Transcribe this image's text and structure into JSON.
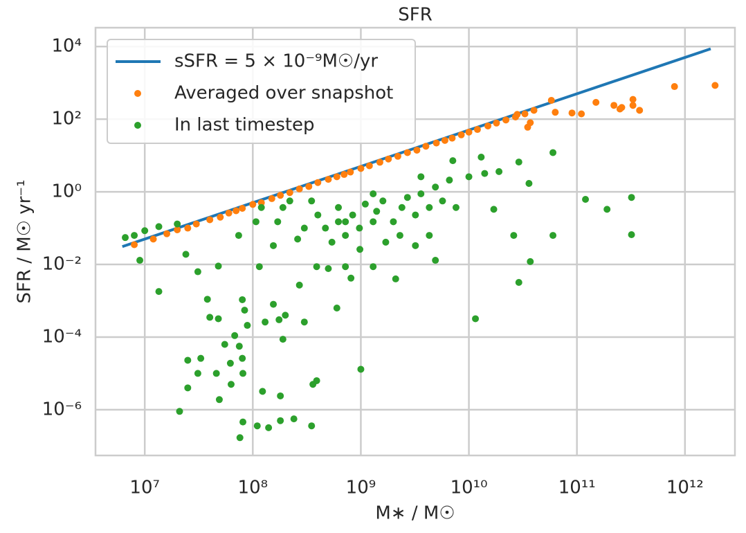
{
  "chart_data": {
    "type": "scatter",
    "title": "SFR",
    "x_label": "M∗ / M☉",
    "y_label": "SFR / M☉ yr⁻¹",
    "xscale": "log",
    "yscale": "log",
    "grid": true,
    "legend": "upper left",
    "xlim": [
      3500000.0,
      2900000000000.0
    ],
    "ylim": [
      5.5e-08,
      33000.0
    ],
    "xticks": [
      {
        "value": 10000000.0,
        "label": "10⁷"
      },
      {
        "value": 100000000.0,
        "label": "10⁸"
      },
      {
        "value": 1000000000.0,
        "label": "10⁹"
      },
      {
        "value": 10000000000.0,
        "label": "10¹⁰"
      },
      {
        "value": 100000000000.0,
        "label": "10¹¹"
      },
      {
        "value": 1000000000000.0,
        "label": "10¹²"
      }
    ],
    "yticks": [
      {
        "value": 1e-06,
        "label": "10⁻⁶"
      },
      {
        "value": 0.0001,
        "label": "10⁻⁴"
      },
      {
        "value": 0.01,
        "label": "10⁻²"
      },
      {
        "value": 1,
        "label": "10⁰"
      },
      {
        "value": 100,
        "label": "10²"
      },
      {
        "value": 10000,
        "label": "10⁴"
      }
    ],
    "series": [
      {
        "name": "sSFR = 5 × 10⁻⁹M☉/yr",
        "kind": "line",
        "color": "#1f77b4",
        "x": [
          6200000.0,
          1730000000000.0
        ],
        "values": [
          0.031,
          8650
        ]
      },
      {
        "name": "Averaged over snapshot",
        "kind": "scatter",
        "color": "#ff7f0e",
        "x": [
          8000000.0,
          12000000.0,
          16000000.0,
          20000000.0,
          25000000.0,
          30000000.0,
          40000000.0,
          50000000.0,
          60000000.0,
          70000000.0,
          80000000.0,
          100000000.0,
          120000000.0,
          150000000.0,
          180000000.0,
          220000000.0,
          270000000.0,
          330000000.0,
          400000000.0,
          500000000.0,
          600000000.0,
          700000000.0,
          800000000.0,
          1000000000.0,
          1200000000.0,
          1500000000.0,
          1800000000.0,
          2200000000.0,
          2700000000.0,
          3300000000.0,
          4000000000.0,
          5000000000.0,
          6000000000.0,
          7000000000.0,
          8500000000.0,
          10000000000.0,
          12000000000.0,
          15000000000.0,
          18000000000.0,
          22000000000.0,
          27000000000.0,
          33000000000.0,
          40000000000.0,
          35000000000.0,
          28000000000.0,
          37000000000.0,
          58000000000.0,
          63000000000.0,
          90000000000.0,
          150000000000.0,
          110000000000.0,
          220000000000.0,
          250000000000.0,
          260000000000.0,
          330000000000.0,
          330000000000.0,
          380000000000.0,
          800000000000.0,
          1900000000000.0
        ],
        "values": [
          0.035,
          0.05,
          0.07,
          0.09,
          0.1,
          0.13,
          0.17,
          0.2,
          0.26,
          0.3,
          0.35,
          0.45,
          0.5,
          0.65,
          0.8,
          0.95,
          1.2,
          1.4,
          1.8,
          2.2,
          2.6,
          3,
          3.5,
          4.4,
          5.2,
          6.5,
          8,
          9.5,
          12,
          14,
          18,
          22,
          26,
          30,
          37,
          44,
          52,
          65,
          78,
          95,
          115,
          140,
          175,
          60,
          135,
          80,
          330,
          155,
          148,
          290,
          140,
          240,
          190,
          210,
          350,
          240,
          175,
          790,
          850
        ]
      },
      {
        "name": "In last timestep",
        "kind": "scatter",
        "color": "#2ca02c",
        "x": [
          6600000.0,
          8000000.0,
          10000000.0,
          13500000.0,
          9000000.0,
          13500000.0,
          20000000.0,
          24000000.0,
          31000000.0,
          21000000.0,
          25000000.0,
          25000000.0,
          33000000.0,
          31000000.0,
          38000000.0,
          40000000.0,
          46000000.0,
          48000000.0,
          48000000.0,
          49000000.0,
          55000000.0,
          63000000.0,
          62000000.0,
          68000000.0,
          76000000.0,
          81000000.0,
          80000000.0,
          84000000.0,
          75000000.0,
          80000000.0,
          81000000.0,
          89000000.0,
          110000000.0,
          115000000.0,
          123000000.0,
          130000000.0,
          140000000.0,
          155000000.0,
          175000000.0,
          180000000.0,
          190000000.0,
          180000000.0,
          200000000.0,
          240000000.0,
          270000000.0,
          300000000.0,
          350000000.0,
          360000000.0,
          390000000.0,
          390000000.0,
          500000000.0,
          600000000.0,
          1000000000.0,
          720000000.0,
          810000000.0,
          1300000000.0,
          2100000000.0,
          4900000000.0,
          11500000000.0,
          29000000000.0,
          37000000000.0,
          60000000000.0,
          26000000000.0,
          17000000000.0,
          60000000000.0,
          120000000000.0,
          190000000000.0,
          320000000000.0,
          320000000000.0,
          13000000000.0,
          7100000000.0,
          36000000000.0,
          29000000000.0,
          19000000000.0,
          120000000.0,
          170000000.0,
          220000000.0,
          300000000.0,
          400000000.0,
          540000000.0,
          620000000.0,
          720000000.0,
          840000000.0,
          970000000.0,
          1100000000.0,
          1400000000.0,
          1600000000.0,
          2000000000.0,
          2400000000.0,
          2700000000.0,
          3200000000.0,
          3600000000.0,
          4300000000.0,
          4900000000.0,
          5700000000.0,
          6600000000.0,
          1700000000.0,
          2300000000.0,
          3200000000.0,
          980000000.0,
          350000000.0,
          190000000.0,
          107000000.0,
          74000000.0,
          1300000000.0,
          3600000000.0,
          10000000000.0,
          14000000000.0,
          7600000000.0,
          4300000000.0,
          720000000.0,
          470000000.0,
          260000000.0,
          155000000.0,
          1300000000.0,
          620000000.0
        ],
        "values": [
          0.055,
          0.063,
          0.085,
          0.11,
          0.013,
          0.0018,
          0.13,
          0.019,
          0.0063,
          9e-07,
          2.3e-05,
          4e-06,
          2.6e-05,
          1e-05,
          0.0011,
          0.00035,
          1e-05,
          0.009,
          0.00032,
          1.9e-06,
          6.3e-05,
          5e-06,
          1.9e-05,
          0.00011,
          1.7e-07,
          4.6e-07,
          0.00107,
          0.00055,
          5.6e-05,
          2.6e-05,
          1e-05,
          0.00021,
          3.6e-07,
          0.0087,
          3.2e-06,
          0.00026,
          3.2e-07,
          0.0008,
          0.0003,
          2.4e-06,
          8.7e-05,
          5e-07,
          0.0004,
          5.6e-07,
          0.0027,
          0.00026,
          3.6e-07,
          5e-06,
          6.3e-06,
          0.0087,
          0.0077,
          0.00063,
          1.3e-05,
          0.0087,
          0.0042,
          0.0087,
          0.004,
          0.013,
          0.00032,
          0.0032,
          0.012,
          0.063,
          0.063,
          0.33,
          12,
          0.62,
          0.33,
          0.7,
          0.066,
          9,
          7.2,
          1.7,
          6.6,
          3.6,
          0.37,
          0.15,
          0.56,
          0.1,
          0.23,
          0.041,
          0.37,
          0.15,
          0.23,
          0.1,
          0.46,
          0.29,
          0.56,
          0.15,
          0.37,
          0.7,
          0.23,
          0.88,
          0.37,
          1.35,
          0.56,
          2.1,
          0.041,
          0.063,
          0.033,
          0.026,
          0.56,
          0.37,
          0.15,
          0.063,
          0.88,
          2.6,
          2.6,
          3.2,
          0.37,
          0.063,
          0.063,
          0.1,
          0.05,
          0.033,
          0.15,
          0.15
        ]
      }
    ]
  }
}
